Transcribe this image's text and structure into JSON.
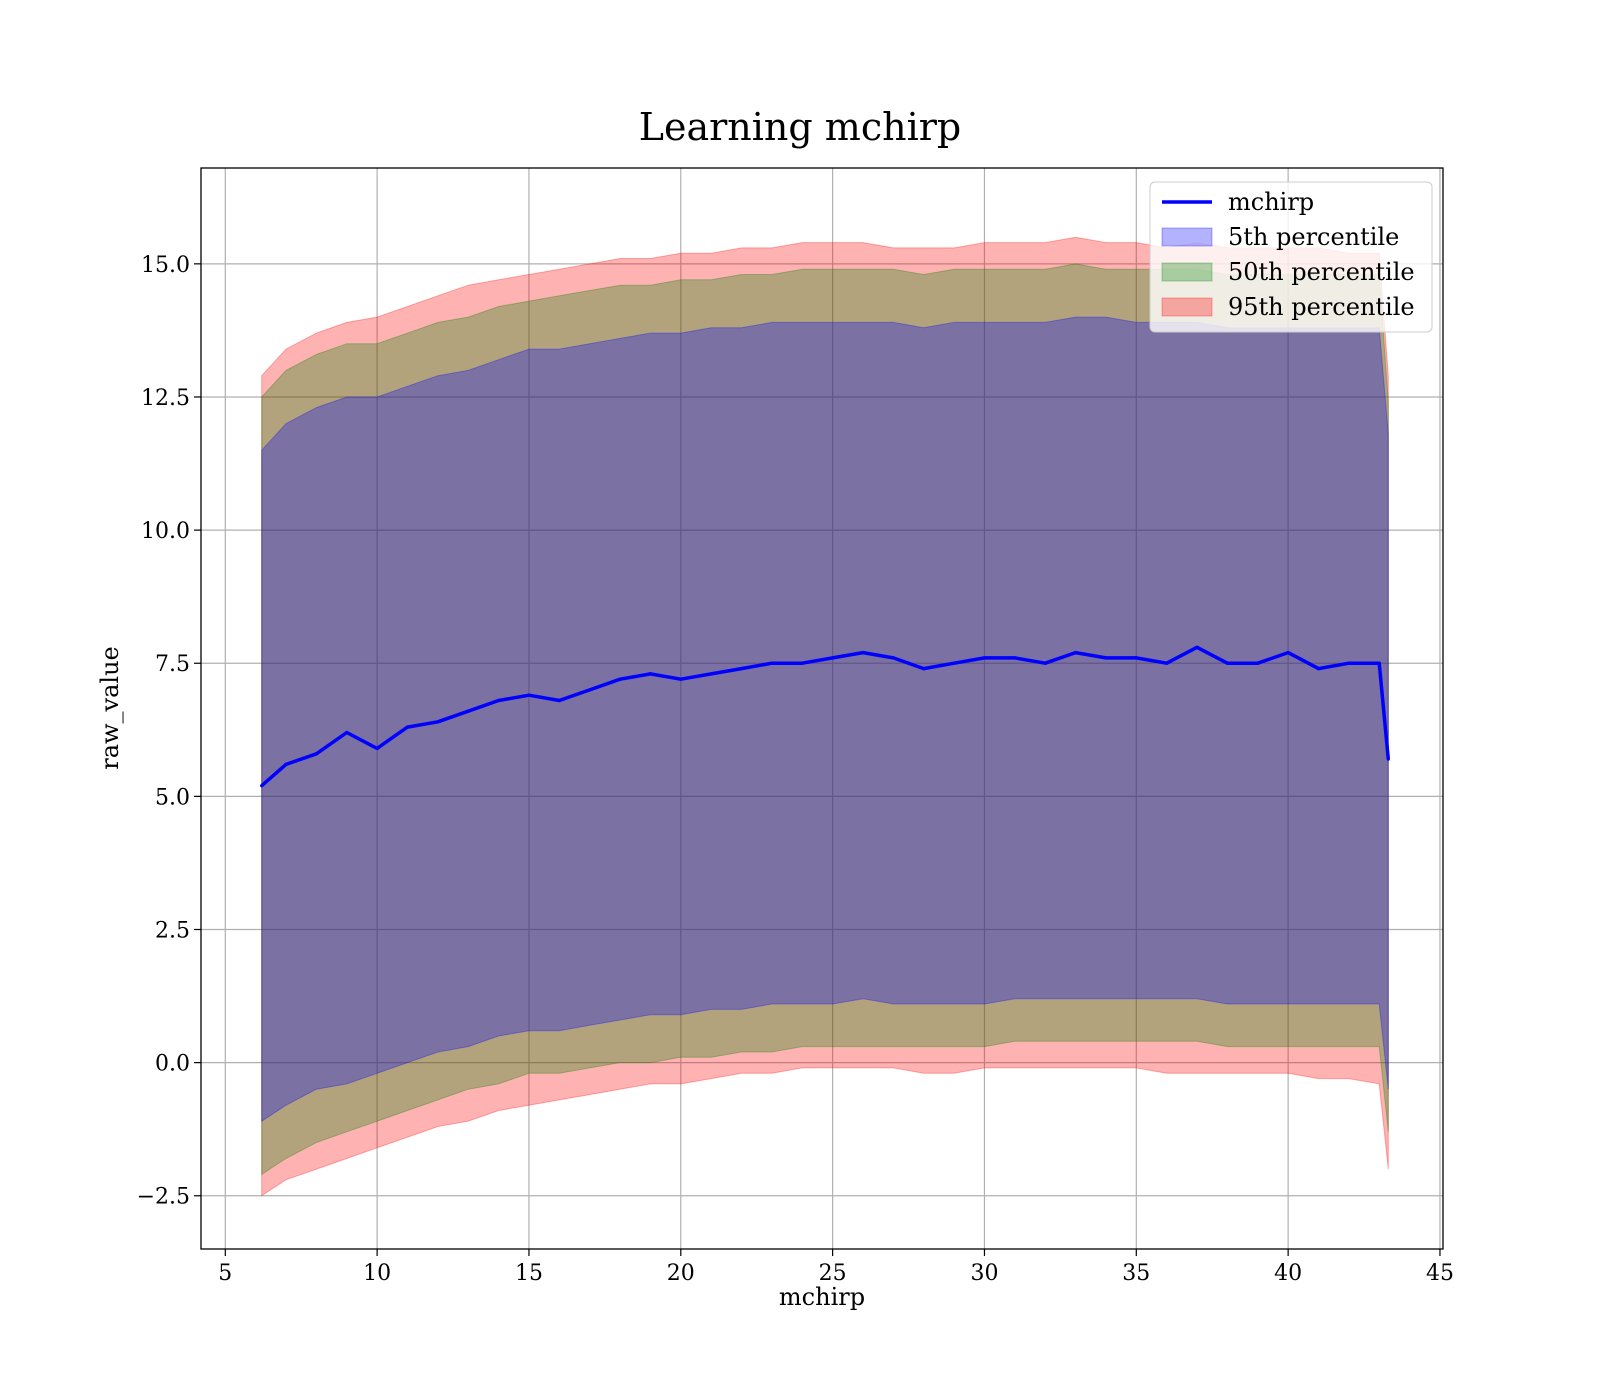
{
  "chart_data": {
    "type": "line",
    "title": "Learning mchirp",
    "xlabel": "mchirp",
    "ylabel": "raw_value",
    "xlim": [
      4.2,
      45.1
    ],
    "ylim": [
      -3.5,
      16.8
    ],
    "xticks": [
      5,
      10,
      15,
      20,
      25,
      30,
      35,
      40,
      45
    ],
    "yticks": [
      -2.5,
      0.0,
      2.5,
      5.0,
      7.5,
      10.0,
      12.5,
      15.0
    ],
    "ytick_labels": [
      "−2.5",
      "0.0",
      "2.5",
      "5.0",
      "7.5",
      "10.0",
      "12.5",
      "15.0"
    ],
    "grid": true,
    "legend_position": "upper right",
    "legend": [
      {
        "label": "mchirp",
        "kind": "line",
        "color": "#0000ff"
      },
      {
        "label": "5th percentile",
        "kind": "patch",
        "color": "#0000ff"
      },
      {
        "label": "50th percentile",
        "kind": "patch",
        "color": "#008000"
      },
      {
        "label": "95th percentile",
        "kind": "patch",
        "color": "#ff0000"
      }
    ],
    "x": [
      6.2,
      7.0,
      8.0,
      9.0,
      10.0,
      11.0,
      12.0,
      13.0,
      14.0,
      15.0,
      16.0,
      17.0,
      18.0,
      19.0,
      20.0,
      21.0,
      22.0,
      23.0,
      24.0,
      25.0,
      26.0,
      27.0,
      28.0,
      29.0,
      30.0,
      31.0,
      32.0,
      33.0,
      34.0,
      35.0,
      36.0,
      37.0,
      38.0,
      39.0,
      40.0,
      41.0,
      42.0,
      43.0,
      43.3
    ],
    "series": [
      {
        "name": "mchirp",
        "color": "#0000ff",
        "values": [
          5.2,
          5.6,
          5.8,
          6.2,
          5.9,
          6.3,
          6.4,
          6.6,
          6.8,
          6.9,
          6.8,
          7.0,
          7.2,
          7.3,
          7.2,
          7.3,
          7.4,
          7.5,
          7.5,
          7.6,
          7.7,
          7.6,
          7.4,
          7.5,
          7.6,
          7.6,
          7.5,
          7.7,
          7.6,
          7.6,
          7.5,
          7.8,
          7.5,
          7.5,
          7.7,
          7.4,
          7.5,
          7.5,
          5.7
        ]
      },
      {
        "name": "5th percentile",
        "color": "#0000ff",
        "lower": [
          -1.1,
          -0.8,
          -0.5,
          -0.4,
          -0.2,
          0.0,
          0.2,
          0.3,
          0.5,
          0.6,
          0.6,
          0.7,
          0.8,
          0.9,
          0.9,
          1.0,
          1.0,
          1.1,
          1.1,
          1.1,
          1.2,
          1.1,
          1.1,
          1.1,
          1.1,
          1.2,
          1.2,
          1.2,
          1.2,
          1.2,
          1.2,
          1.2,
          1.1,
          1.1,
          1.1,
          1.1,
          1.1,
          1.1,
          -0.5
        ],
        "upper": [
          11.5,
          12.0,
          12.3,
          12.5,
          12.5,
          12.7,
          12.9,
          13.0,
          13.2,
          13.4,
          13.4,
          13.5,
          13.6,
          13.7,
          13.7,
          13.8,
          13.8,
          13.9,
          13.9,
          13.9,
          13.9,
          13.9,
          13.8,
          13.9,
          13.9,
          13.9,
          13.9,
          14.0,
          14.0,
          13.9,
          13.9,
          13.9,
          13.8,
          13.8,
          13.8,
          13.8,
          13.8,
          13.8,
          11.8
        ]
      },
      {
        "name": "50th percentile",
        "color": "#008000",
        "lower": [
          -2.1,
          -1.8,
          -1.5,
          -1.3,
          -1.1,
          -0.9,
          -0.7,
          -0.5,
          -0.4,
          -0.2,
          -0.2,
          -0.1,
          0.0,
          0.0,
          0.1,
          0.1,
          0.2,
          0.2,
          0.3,
          0.3,
          0.3,
          0.3,
          0.3,
          0.3,
          0.3,
          0.4,
          0.4,
          0.4,
          0.4,
          0.4,
          0.4,
          0.4,
          0.3,
          0.3,
          0.3,
          0.3,
          0.3,
          0.3,
          -1.3
        ],
        "upper": [
          12.5,
          13.0,
          13.3,
          13.5,
          13.5,
          13.7,
          13.9,
          14.0,
          14.2,
          14.3,
          14.4,
          14.5,
          14.6,
          14.6,
          14.7,
          14.7,
          14.8,
          14.8,
          14.9,
          14.9,
          14.9,
          14.9,
          14.8,
          14.9,
          14.9,
          14.9,
          14.9,
          15.0,
          14.9,
          14.9,
          14.9,
          14.9,
          14.8,
          14.8,
          14.8,
          14.8,
          14.8,
          14.8,
          12.4
        ]
      },
      {
        "name": "95th percentile",
        "color": "#ff0000",
        "lower": [
          -2.5,
          -2.2,
          -2.0,
          -1.8,
          -1.6,
          -1.4,
          -1.2,
          -1.1,
          -0.9,
          -0.8,
          -0.7,
          -0.6,
          -0.5,
          -0.4,
          -0.4,
          -0.3,
          -0.2,
          -0.2,
          -0.1,
          -0.1,
          -0.1,
          -0.1,
          -0.2,
          -0.2,
          -0.1,
          -0.1,
          -0.1,
          -0.1,
          -0.1,
          -0.1,
          -0.2,
          -0.2,
          -0.2,
          -0.2,
          -0.2,
          -0.3,
          -0.3,
          -0.4,
          -2.0
        ],
        "upper": [
          12.9,
          13.4,
          13.7,
          13.9,
          14.0,
          14.2,
          14.4,
          14.6,
          14.7,
          14.8,
          14.9,
          15.0,
          15.1,
          15.1,
          15.2,
          15.2,
          15.3,
          15.3,
          15.4,
          15.4,
          15.4,
          15.3,
          15.3,
          15.3,
          15.4,
          15.4,
          15.4,
          15.5,
          15.4,
          15.4,
          15.3,
          15.4,
          15.3,
          15.3,
          15.3,
          15.3,
          15.2,
          15.2,
          12.9
        ]
      }
    ]
  }
}
